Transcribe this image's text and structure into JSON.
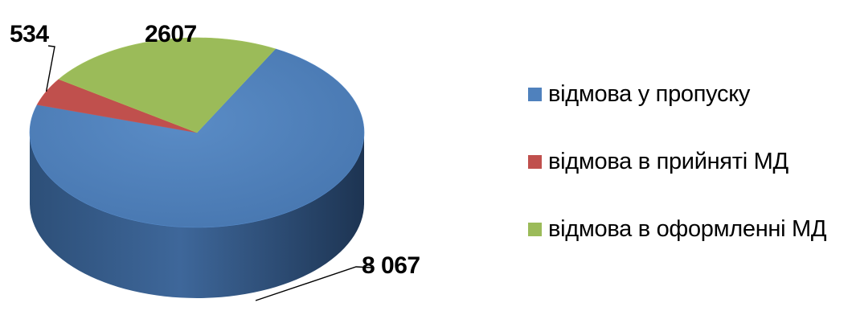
{
  "chart_data": {
    "type": "pie",
    "style": "3d",
    "title": "",
    "slices": [
      {
        "name": "відмова у пропуску",
        "value": 8067,
        "label": "8 067",
        "color": "#4F81BD"
      },
      {
        "name": "відмова в прийняті МД",
        "value": 534,
        "label": "534",
        "color": "#C0504D"
      },
      {
        "name": "відмова в оформленні МД",
        "value": 2607,
        "label": "2607",
        "color": "#9BBB59"
      }
    ],
    "legend_position": "right"
  }
}
